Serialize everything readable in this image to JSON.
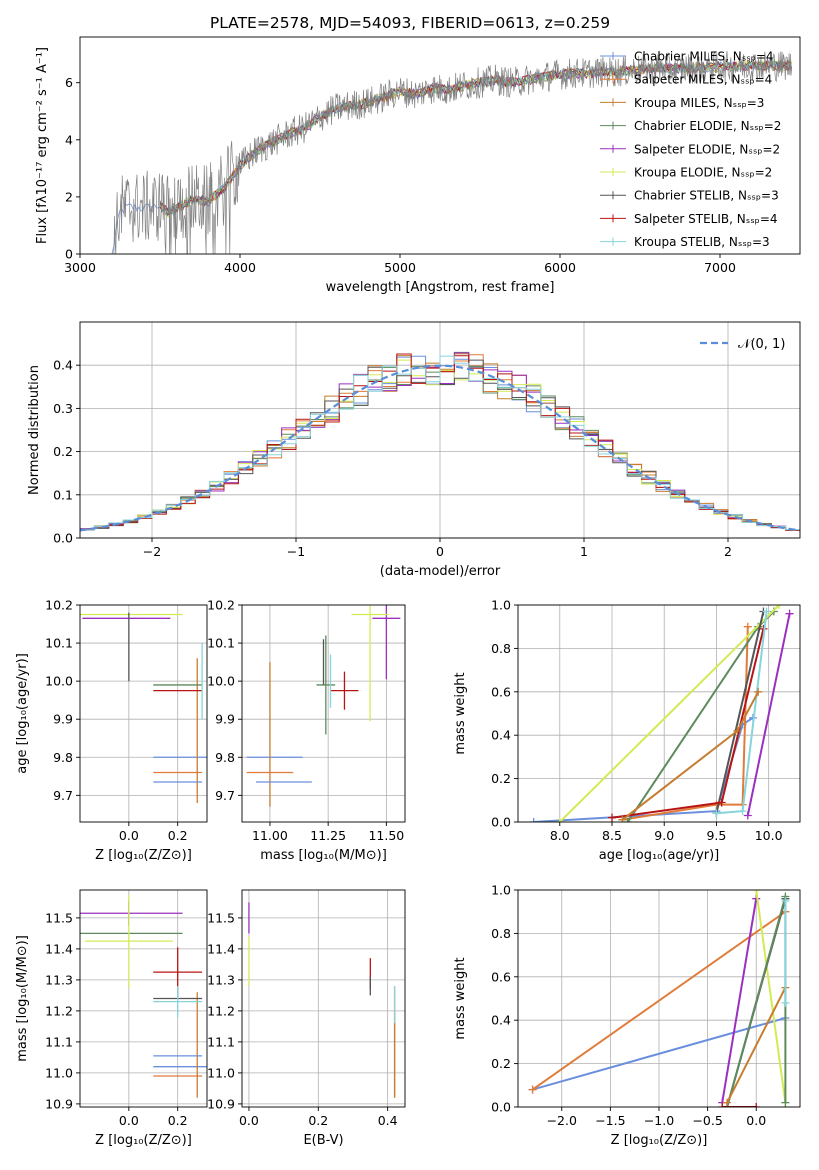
{
  "colors": [
    "#6a8fdc",
    "#e07b39",
    "#c77c2f",
    "#5e8a5e",
    "#9b30c0",
    "#d4ea55",
    "#555555",
    "#b81414",
    "#86d4dc"
  ],
  "chart_data": [
    {
      "id": "spectrum",
      "type": "line",
      "title": "PLATE=2578, MJD=54093, FIBERID=0613, z=0.259",
      "xlabel": "wavelength [Angstrom, rest frame]",
      "ylabel": "Flux [fλ10⁻¹⁷ erg cm⁻² s⁻¹ A⁻¹]",
      "xlim": [
        3000,
        7500
      ],
      "ylim": [
        0,
        7.6
      ],
      "xticks": [
        "3000",
        "4000",
        "5000",
        "6000",
        "7000"
      ],
      "yticks": [
        "0",
        "2",
        "4",
        "6"
      ],
      "legend_position": "top-right",
      "legend": [
        "Chabrier MILES, Nₛₛₚ=4",
        "Salpeter MILES, Nₛₛₚ=4",
        "Kroupa MILES, Nₛₛₚ=3",
        "Chabrier ELODIE, Nₛₛₚ=2",
        "Salpeter ELODIE, Nₛₛₚ=2",
        "Kroupa ELODIE, Nₛₛₚ=2",
        "Chabrier STELIB, Nₛₛₚ=3",
        "Salpeter STELIB, Nₛₛₚ=4",
        "Kroupa STELIB, Nₛₛₚ=3"
      ],
      "data_curve": {
        "x": [
          3200,
          3250,
          3300,
          3400,
          3500,
          3550,
          3700,
          3800,
          3900,
          4000,
          4100,
          4200,
          4300,
          4400,
          4500,
          4600,
          4700,
          4800,
          4900,
          5000,
          5100,
          5200,
          5300,
          5400,
          5500,
          5600,
          5700,
          5800,
          5900,
          6000,
          6200,
          6400,
          6600,
          6800,
          7000,
          7200,
          7400
        ],
        "y": [
          0.0,
          1.5,
          1.65,
          1.6,
          1.7,
          1.45,
          1.9,
          1.85,
          2.3,
          3.1,
          3.6,
          3.9,
          4.2,
          4.4,
          4.8,
          5.1,
          5.2,
          5.3,
          5.5,
          5.7,
          5.6,
          5.8,
          5.75,
          5.9,
          6.0,
          6.1,
          6.0,
          6.1,
          6.2,
          6.3,
          6.35,
          6.4,
          6.5,
          6.5,
          6.55,
          6.6,
          6.6
        ]
      }
    },
    {
      "id": "residuals",
      "type": "histogram",
      "xlabel": "(data-model)/error",
      "ylabel": "Normed distribution",
      "xlim": [
        -2.5,
        2.5
      ],
      "ylim": [
        0,
        0.5
      ],
      "xticks": [
        "−2",
        "−1",
        "0",
        "1",
        "2"
      ],
      "yticks": [
        "0.0",
        "0.1",
        "0.2",
        "0.3",
        "0.4"
      ],
      "legend": [
        "𝒩(0, 1)"
      ],
      "legend_position": "top-right"
    },
    {
      "id": "age-vs-Z",
      "type": "scatter",
      "xlabel": "Z [log₁₀(Z/Z⊙)]",
      "ylabel": "age  [log₁₀(age/yr)]",
      "xlim": [
        -0.2,
        0.32
      ],
      "ylim": [
        9.63,
        10.2
      ],
      "xticks": [
        "0.0",
        "0.2"
      ],
      "yticks": [
        "9.7",
        "9.8",
        "9.9",
        "10.0",
        "10.1",
        "10.2"
      ],
      "points": [
        {
          "x": 0.22,
          "y": 9.8,
          "xerr": 0.12,
          "yerr": 0.0,
          "c": 0
        },
        {
          "x": 0.2,
          "y": 9.76,
          "xerr": 0.1,
          "yerr": 0.0,
          "c": 1
        },
        {
          "x": 0.28,
          "y": 9.87,
          "xerr": 0.0,
          "yerr": 0.19,
          "c": 2
        },
        {
          "x": 0.2,
          "y": 9.99,
          "xerr": 0.1,
          "yerr": 0.0,
          "c": 3
        },
        {
          "x": -0.01,
          "y": 10.165,
          "xerr": 0.18,
          "yerr": 0.0,
          "c": 4
        },
        {
          "x": 0.0,
          "y": 10.175,
          "xerr": 0.22,
          "yerr": 0.0,
          "c": 5
        },
        {
          "x": 0.0,
          "y": 10.09,
          "xerr": 0.0,
          "yerr": 0.09,
          "c": 6
        },
        {
          "x": 0.2,
          "y": 9.975,
          "xerr": 0.1,
          "yerr": 0.0,
          "c": 7
        },
        {
          "x": 0.3,
          "y": 10.0,
          "xerr": 0.0,
          "yerr": 0.1,
          "c": 8
        },
        {
          "x": 0.2,
          "y": 9.735,
          "xerr": 0.1,
          "yerr": 0.0,
          "c": 0
        }
      ]
    },
    {
      "id": "age-vs-mass",
      "type": "scatter",
      "xlabel": "mass [log₁₀(M/M⊙)]",
      "xlim": [
        10.88,
        11.58
      ],
      "ylim": [
        9.63,
        10.2
      ],
      "xticks": [
        "11.00",
        "11.25",
        "11.50"
      ],
      "yticks": [
        "9.7",
        "9.8",
        "9.9",
        "10.0",
        "10.1",
        "10.2"
      ],
      "points": [
        {
          "x": 11.02,
          "y": 9.8,
          "xerr": 0.12,
          "yerr": 0.0,
          "c": 0
        },
        {
          "x": 11.0,
          "y": 9.76,
          "xerr": 0.1,
          "yerr": 0.0,
          "c": 1
        },
        {
          "x": 11.0,
          "y": 9.86,
          "xerr": 0.0,
          "yerr": 0.19,
          "c": 2
        },
        {
          "x": 11.24,
          "y": 9.99,
          "xerr": 0.04,
          "yerr": 0.13,
          "c": 3
        },
        {
          "x": 11.5,
          "y": 10.165,
          "xerr": 0.06,
          "yerr": 0.16,
          "c": 4
        },
        {
          "x": 11.43,
          "y": 10.175,
          "xerr": 0.08,
          "yerr": 0.28,
          "c": 5
        },
        {
          "x": 11.23,
          "y": 10.05,
          "xerr": 0.0,
          "yerr": 0.06,
          "c": 6
        },
        {
          "x": 11.32,
          "y": 9.975,
          "xerr": 0.06,
          "yerr": 0.05,
          "c": 7
        },
        {
          "x": 11.26,
          "y": 10.0,
          "xerr": 0.0,
          "yerr": 0.07,
          "c": 8
        },
        {
          "x": 11.06,
          "y": 9.735,
          "xerr": 0.12,
          "yerr": 0.0,
          "c": 0
        }
      ]
    },
    {
      "id": "mass-weight-vs-age",
      "type": "line",
      "xlabel": "age  [log₁₀(age/yr)]",
      "ylabel": "mass weight",
      "xlim": [
        7.6,
        10.3
      ],
      "ylim": [
        0,
        1.0
      ],
      "xticks": [
        "8.0",
        "8.5",
        "9.0",
        "9.5",
        "10.0"
      ],
      "yticks": [
        "0.0",
        "0.2",
        "0.4",
        "0.6",
        "0.8",
        "1.0"
      ],
      "series": [
        {
          "c": 0,
          "x": [
            7.75,
            9.5,
            9.75,
            9.85
          ],
          "y": [
            0.0,
            0.05,
            0.45,
            0.48
          ]
        },
        {
          "c": 1,
          "x": [
            8.6,
            9.5,
            9.75,
            9.8
          ],
          "y": [
            0.01,
            0.08,
            0.08,
            0.9
          ]
        },
        {
          "c": 3,
          "x": [
            8.65,
            9.9,
            10.05
          ],
          "y": [
            0.0,
            0.9,
            0.97
          ]
        },
        {
          "c": 4,
          "x": [
            9.8,
            10.2
          ],
          "y": [
            0.03,
            0.96
          ]
        },
        {
          "c": 5,
          "x": [
            8.0,
            10.1
          ],
          "y": [
            0.0,
            1.0
          ]
        },
        {
          "c": 6,
          "x": [
            9.5,
            9.95
          ],
          "y": [
            0.04,
            0.97
          ]
        },
        {
          "c": 7,
          "x": [
            8.5,
            9.55,
            9.95
          ],
          "y": [
            0.02,
            0.09,
            0.89
          ]
        },
        {
          "c": 8,
          "x": [
            9.5,
            9.75,
            9.98
          ],
          "y": [
            0.04,
            0.05,
            0.97
          ]
        },
        {
          "c": 2,
          "x": [
            8.6,
            9.7,
            9.9
          ],
          "y": [
            0.01,
            0.42,
            0.6
          ]
        }
      ]
    },
    {
      "id": "mass-vs-Z",
      "type": "scatter",
      "xlabel": "Z [log₁₀(Z/Z⊙)]",
      "ylabel": "mass [log₁₀(M/M⊙)]",
      "xlim": [
        -0.2,
        0.32
      ],
      "ylim": [
        10.89,
        11.59
      ],
      "xticks": [
        "0.0",
        "0.2"
      ],
      "yticks": [
        "10.9",
        "11.0",
        "11.1",
        "11.2",
        "11.3",
        "11.4",
        "11.5"
      ],
      "points": [
        {
          "x": 0.22,
          "y": 11.02,
          "xerr": 0.12,
          "yerr": 0.0,
          "c": 0
        },
        {
          "x": 0.2,
          "y": 10.99,
          "xerr": 0.1,
          "yerr": 0.0,
          "c": 1
        },
        {
          "x": 0.28,
          "y": 11.09,
          "xerr": 0.0,
          "yerr": 0.17,
          "c": 2
        },
        {
          "x": 0.0,
          "y": 11.45,
          "xerr": 0.22,
          "yerr": 0.0,
          "c": 3
        },
        {
          "x": 0.0,
          "y": 11.515,
          "xerr": 0.22,
          "yerr": 0.04,
          "c": 4
        },
        {
          "x": 0.0,
          "y": 11.425,
          "xerr": 0.18,
          "yerr": 0.15,
          "c": 5
        },
        {
          "x": 0.2,
          "y": 11.24,
          "xerr": 0.1,
          "yerr": 0.0,
          "c": 6
        },
        {
          "x": 0.2,
          "y": 11.325,
          "xerr": 0.1,
          "yerr": 0.08,
          "c": 7
        },
        {
          "x": 0.2,
          "y": 11.23,
          "xerr": 0.1,
          "yerr": 0.05,
          "c": 8
        },
        {
          "x": 0.2,
          "y": 11.055,
          "xerr": 0.1,
          "yerr": 0.0,
          "c": 0
        }
      ]
    },
    {
      "id": "mass-vs-EBV",
      "type": "scatter",
      "xlabel": "E(B-V)",
      "xlim": [
        -0.02,
        0.45
      ],
      "ylim": [
        10.89,
        11.59
      ],
      "xticks": [
        "0.0",
        "0.2",
        "0.4"
      ],
      "yticks": [
        "10.9",
        "11.0",
        "11.1",
        "11.2",
        "11.3",
        "11.4",
        "11.5"
      ],
      "points": [
        {
          "x": 0.0,
          "y": 11.5,
          "xerr": 0.0,
          "yerr": 0.05,
          "c": 4
        },
        {
          "x": 0.0,
          "y": 11.36,
          "xerr": 0.0,
          "yerr": 0.08,
          "c": 5
        },
        {
          "x": 0.35,
          "y": 11.32,
          "xerr": 0.0,
          "yerr": 0.05,
          "c": 7
        },
        {
          "x": 0.35,
          "y": 11.28,
          "xerr": 0.0,
          "yerr": 0.03,
          "c": 6
        },
        {
          "x": 0.42,
          "y": 11.1,
          "xerr": 0.0,
          "yerr": 0.18,
          "c": 1
        },
        {
          "x": 0.42,
          "y": 11.06,
          "xerr": 0.0,
          "yerr": 0.14,
          "c": 2
        },
        {
          "x": 0.42,
          "y": 11.22,
          "xerr": 0.0,
          "yerr": 0.06,
          "c": 8
        }
      ]
    },
    {
      "id": "mass-weight-vs-Z",
      "type": "line",
      "xlabel": "Z [log₁₀(Z/Z⊙)]",
      "ylabel": "mass weight",
      "xlim": [
        -2.45,
        0.45
      ],
      "ylim": [
        0,
        1.0
      ],
      "xticks": [
        "−2.0",
        "−1.5",
        "−1.0",
        "−0.5",
        "0.0"
      ],
      "yticks": [
        "0.0",
        "0.2",
        "0.4",
        "0.6",
        "0.8",
        "1.0"
      ],
      "series": [
        {
          "c": 0,
          "x": [
            -2.3,
            0.3
          ],
          "y": [
            0.08,
            0.41
          ]
        },
        {
          "c": 1,
          "x": [
            -2.3,
            0.3
          ],
          "y": [
            0.08,
            0.9
          ]
        },
        {
          "c": 4,
          "x": [
            -0.35,
            0.0
          ],
          "y": [
            0.02,
            0.96
          ]
        },
        {
          "c": 5,
          "x": [
            0.0,
            0.3
          ],
          "y": [
            1.0,
            0.02
          ]
        },
        {
          "c": 6,
          "x": [
            -0.3,
            0.3
          ],
          "y": [
            0.0,
            0.96
          ]
        },
        {
          "c": 3,
          "x": [
            -0.3,
            0.3,
            0.3
          ],
          "y": [
            0.0,
            0.97,
            0.02
          ]
        },
        {
          "c": 2,
          "x": [
            -0.3,
            0.3
          ],
          "y": [
            0.02,
            0.55
          ]
        },
        {
          "c": 7,
          "x": [
            -0.35,
            0.0
          ],
          "y": [
            0.0,
            0.0
          ]
        },
        {
          "c": 8,
          "x": [
            0.3,
            0.3
          ],
          "y": [
            0.95,
            0.48
          ]
        }
      ]
    }
  ]
}
